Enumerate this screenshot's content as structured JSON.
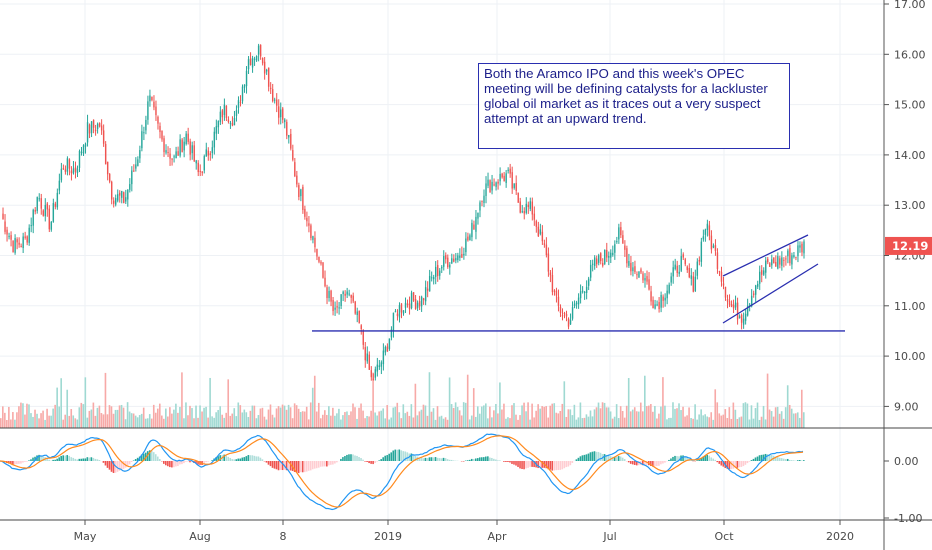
{
  "chart_data": {
    "type": "candlestick",
    "title": "",
    "price_axis": {
      "ticks": [
        17,
        16,
        15,
        14,
        13,
        12,
        11,
        10,
        9
      ],
      "labels": [
        "17.00",
        "16.00",
        "15.00",
        "14.00",
        "13.00",
        "12.00",
        "11.00",
        "10.00",
        "9.00"
      ],
      "range": [
        8.5,
        17.1
      ]
    },
    "macd_axis": {
      "labels": [
        "0.00",
        "-1.00"
      ],
      "ticks": [
        0,
        -1
      ]
    },
    "time_labels": [
      "May",
      "Aug",
      "8",
      "2019",
      "Apr",
      "Jul",
      "Oct",
      "2020"
    ],
    "last_price": "12.19",
    "price_points": [
      12.8,
      12.2,
      12.3,
      13.2,
      12.6,
      13.8,
      13.7,
      14.5,
      14.6,
      13.2,
      13.1,
      13.9,
      15.1,
      14.3,
      13.9,
      14.4,
      13.6,
      14.2,
      14.9,
      14.7,
      15.9,
      16.1,
      15.2,
      14.6,
      13.4,
      12.6,
      11.6,
      10.8,
      11.3,
      10.6,
      9.5,
      10.0,
      10.9,
      11.1,
      11.1,
      11.6,
      11.9,
      12.0,
      12.4,
      13.3,
      13.5,
      13.6,
      13.0,
      12.9,
      12.1,
      11.0,
      10.7,
      11.3,
      11.8,
      12.0,
      12.4,
      11.8,
      11.6,
      11.0,
      11.4,
      11.9,
      11.4,
      12.6,
      11.9,
      11.0,
      10.8,
      11.4,
      11.8,
      11.9,
      12.0,
      12.2
    ],
    "support_level": 10.5,
    "colors": {
      "up": "#26a69a",
      "down": "#ef5350",
      "macd": "#2196f3",
      "signal": "#ff8a1e",
      "lines": "#2a2fb0"
    },
    "annotation": "Both the Aramco IPO and this week's OPEC meeting will be defining catalysts for a lackluster global oil market as it traces out a very suspect attempt at an upward trend."
  }
}
